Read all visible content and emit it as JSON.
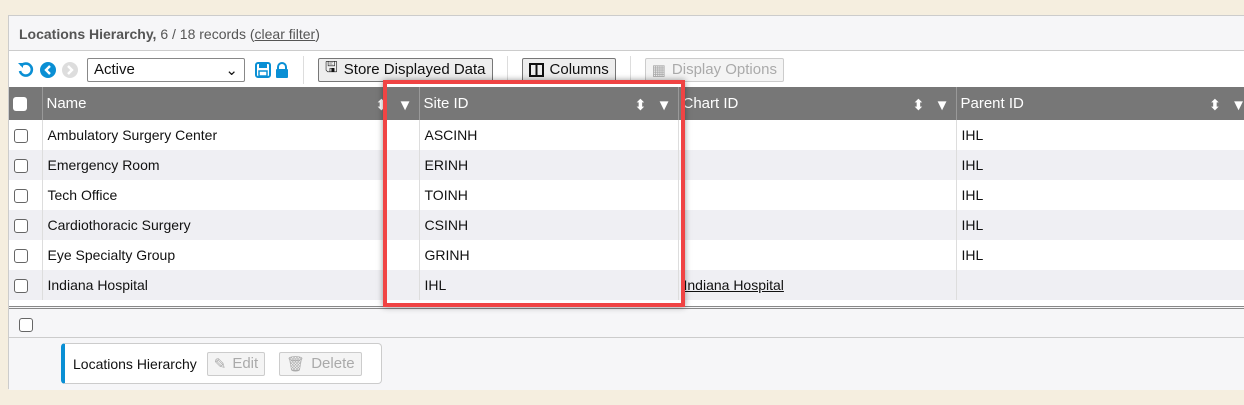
{
  "title": {
    "name": "Locations Hierarchy,",
    "count": "6 / 18 records",
    "clear": "clear filter"
  },
  "toolbar": {
    "status": "Active",
    "store": "Store Displayed Data",
    "columns": "Columns",
    "display_options": "Display Options"
  },
  "columns": [
    "Name",
    "Site ID",
    "Chart ID",
    "Parent ID"
  ],
  "rows": [
    {
      "name": "Ambulatory Surgery Center",
      "site": "ASCINH",
      "chart": "",
      "parent": "IHL"
    },
    {
      "name": "Emergency Room",
      "site": "ERINH",
      "chart": "",
      "parent": "IHL"
    },
    {
      "name": "Tech Office",
      "site": "TOINH",
      "chart": "",
      "parent": "IHL"
    },
    {
      "name": "Cardiothoracic Surgery",
      "site": "CSINH",
      "chart": "",
      "parent": "IHL"
    },
    {
      "name": "Eye Specialty Group",
      "site": "GRINH",
      "chart": "",
      "parent": "IHL"
    },
    {
      "name": "Indiana Hospital",
      "site": "IHL",
      "chart": "Indiana Hospital",
      "parent": ""
    }
  ],
  "card": {
    "label": "Locations Hierarchy",
    "edit": "Edit",
    "delete": "Delete"
  },
  "colors": {
    "accent": "#0a8fd4",
    "highlight": "#f04444",
    "header": "#777777"
  }
}
